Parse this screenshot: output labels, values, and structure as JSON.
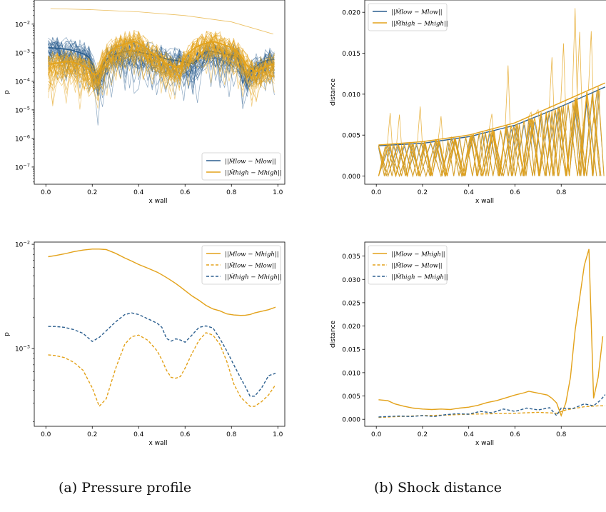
{
  "captions": {
    "a": "(a) Pressure profile",
    "b": "(b) Shock distance"
  },
  "colors": {
    "blue": "#2c5f8f",
    "orange": "#e3a21a"
  },
  "chart_data": [
    {
      "id": "pressure-ensemble",
      "type": "line",
      "title": "",
      "xlabel": "x wall",
      "ylabel": "p",
      "yscale": "log",
      "xlim": [
        -0.05,
        1.03
      ],
      "ylim": [
        2.5e-08,
        0.07
      ],
      "xticks": [
        "0.0",
        "0.2",
        "0.4",
        "0.6",
        "0.8",
        "1.0"
      ],
      "yticks": [
        "10^-7",
        "10^-6",
        "10^-5",
        "10^-4",
        "10^-3",
        "10^-2"
      ],
      "legend_position": "lower right",
      "legend": [
        "||M̂low − Mlow||",
        "||M̂high − Mhigh||"
      ],
      "grid": false,
      "note_series": "ensemble of many thin traces per series; representative traces listed",
      "series": [
        {
          "name": "||M̂low − Mlow||",
          "color": "blue",
          "samples": 30,
          "x": [
            0.02,
            0.1,
            0.18,
            0.22,
            0.28,
            0.36,
            0.44,
            0.52,
            0.58,
            0.64,
            0.7,
            0.76,
            0.82,
            0.86,
            0.9,
            0.94,
            0.98
          ],
          "y": [
            0.0015,
            0.0013,
            0.0008,
            5e-05,
            0.0008,
            0.0012,
            0.0009,
            0.0006,
            0.0005,
            0.0004,
            0.0012,
            0.0009,
            0.0008,
            0.0001,
            0.0003,
            0.0005,
            0.0006
          ]
        },
        {
          "name": "||M̂high − Mhigh||",
          "color": "orange",
          "samples": 40,
          "x": [
            0.02,
            0.1,
            0.18,
            0.22,
            0.3,
            0.38,
            0.46,
            0.52,
            0.58,
            0.66,
            0.72,
            0.8,
            0.86,
            0.9,
            0.94,
            0.98
          ],
          "y": [
            0.0004,
            0.0005,
            0.0003,
            0.0001,
            0.0015,
            0.0025,
            0.0009,
            0.0004,
            0.0003,
            0.0018,
            0.0025,
            0.0015,
            0.0004,
            0.0002,
            0.0003,
            0.0004
          ],
          "outlier": {
            "x": [
              0.02,
              0.2,
              0.4,
              0.6,
              0.8,
              0.98
            ],
            "y": [
              0.035,
              0.032,
              0.027,
              0.02,
              0.012,
              0.0045
            ]
          }
        }
      ]
    },
    {
      "id": "shock-ensemble",
      "type": "line",
      "title": "",
      "xlabel": "x wall",
      "ylabel": "distance",
      "xlim": [
        -0.05,
        1.0
      ],
      "ylim": [
        -0.001,
        0.0215
      ],
      "xticks": [
        "0.0",
        "0.2",
        "0.4",
        "0.6",
        "0.8",
        "1.0"
      ],
      "yticks": [
        "0.000",
        "0.005",
        "0.010",
        "0.015",
        "0.020"
      ],
      "legend_position": "upper left",
      "legend": [
        "||M̂low − Mlow||",
        "||M̂high − Mhigh||"
      ],
      "grid": false,
      "series": [
        {
          "name": "||M̂low − Mlow||",
          "color": "blue",
          "envelope": {
            "x": [
              0.01,
              0.2,
              0.4,
              0.6,
              0.8,
              1.0
            ],
            "y": [
              0.0037,
              0.004,
              0.0048,
              0.0062,
              0.0085,
              0.011
            ]
          }
        },
        {
          "name": "||M̂high − Mhigh||",
          "color": "orange",
          "envelope": {
            "x": [
              0.01,
              0.2,
              0.4,
              0.6,
              0.8,
              1.0
            ],
            "y": [
              0.0038,
              0.0042,
              0.005,
              0.0065,
              0.009,
              0.0115
            ]
          },
          "spikes": {
            "x": [
              0.06,
              0.1,
              0.19,
              0.28,
              0.5,
              0.57,
              0.67,
              0.7,
              0.76,
              0.81,
              0.86,
              0.88,
              0.93
            ],
            "y": [
              0.0077,
              0.0075,
              0.0085,
              0.0073,
              0.0076,
              0.0135,
              0.0078,
              0.0081,
              0.0145,
              0.0162,
              0.0205,
              0.0176,
              0.0177
            ]
          }
        }
      ]
    },
    {
      "id": "pressure-mean",
      "type": "line",
      "title": "",
      "xlabel": "x wall",
      "ylabel": "p",
      "yscale": "log",
      "xlim": [
        -0.05,
        1.03
      ],
      "ylim": [
        0.00018,
        0.0105
      ],
      "xticks": [
        "0.0",
        "0.2",
        "0.4",
        "0.6",
        "0.8",
        "1.0"
      ],
      "yticks": [
        "10^-3",
        "10^-2"
      ],
      "legend_position": "upper right",
      "legend": [
        "||Mlow − Mhigh||",
        "||M̂low − Mlow||",
        "||M̂high − Mhigh||"
      ],
      "grid": false,
      "x": [
        0.01,
        0.04,
        0.08,
        0.12,
        0.16,
        0.2,
        0.23,
        0.26,
        0.3,
        0.34,
        0.37,
        0.4,
        0.44,
        0.48,
        0.5,
        0.52,
        0.54,
        0.56,
        0.58,
        0.6,
        0.63,
        0.66,
        0.69,
        0.72,
        0.75,
        0.78,
        0.81,
        0.84,
        0.86,
        0.88,
        0.9,
        0.93,
        0.96,
        0.99
      ],
      "series": [
        {
          "name": "||Mlow − Mhigh||",
          "color": "orange",
          "dash": false,
          "y": [
            0.0076,
            0.0078,
            0.0081,
            0.0085,
            0.0088,
            0.009,
            0.009,
            0.0089,
            0.0082,
            0.0074,
            0.0069,
            0.0064,
            0.0059,
            0.0054,
            0.0051,
            0.0048,
            0.0045,
            0.0042,
            0.0039,
            0.0036,
            0.0032,
            0.0029,
            0.0026,
            0.0024,
            0.0023,
            0.00215,
            0.0021,
            0.00208,
            0.00209,
            0.00212,
            0.0022,
            0.00228,
            0.00236,
            0.0025
          ]
        },
        {
          "name": "||M̂low − Mlow||",
          "color": "orange",
          "dash": true,
          "y": [
            0.00087,
            0.00086,
            0.00082,
            0.00074,
            0.00062,
            0.00042,
            0.00028,
            0.00033,
            0.00064,
            0.0011,
            0.0013,
            0.00135,
            0.0012,
            0.00095,
            0.00078,
            0.00062,
            0.00053,
            0.00052,
            0.00054,
            0.00065,
            0.0009,
            0.0012,
            0.00142,
            0.00135,
            0.0011,
            0.00075,
            0.00046,
            0.00034,
            0.00031,
            0.00028,
            0.00028,
            0.00031,
            0.00036,
            0.00045
          ]
        },
        {
          "name": "||M̂high − Mhigh||",
          "color": "blue",
          "dash": true,
          "y": [
            0.00163,
            0.00163,
            0.0016,
            0.00152,
            0.0014,
            0.00117,
            0.00128,
            0.00148,
            0.0018,
            0.00212,
            0.0022,
            0.00212,
            0.00193,
            0.00175,
            0.0016,
            0.00125,
            0.00118,
            0.00124,
            0.00121,
            0.00115,
            0.00135,
            0.0016,
            0.00165,
            0.00158,
            0.00125,
            0.00095,
            0.0007,
            0.00052,
            0.00043,
            0.00035,
            0.00035,
            0.00042,
            0.00055,
            0.00058
          ]
        }
      ]
    },
    {
      "id": "shock-mean",
      "type": "line",
      "title": "",
      "xlabel": "x wall",
      "ylabel": "distance",
      "xlim": [
        -0.05,
        1.0
      ],
      "ylim": [
        -0.0015,
        0.038
      ],
      "xticks": [
        "0.0",
        "0.2",
        "0.4",
        "0.6",
        "0.8",
        "1.0"
      ],
      "yticks": [
        "0.000",
        "0.005",
        "0.010",
        "0.015",
        "0.020",
        "0.025",
        "0.030",
        "0.035"
      ],
      "legend_position": "upper left",
      "legend": [
        "||Mlow − Mhigh||",
        "||M̂low − Mlow||",
        "||M̂high − Mhigh||"
      ],
      "grid": false,
      "series": [
        {
          "name": "||Mlow − Mhigh||",
          "color": "orange",
          "dash": false,
          "x": [
            0.01,
            0.05,
            0.08,
            0.12,
            0.16,
            0.2,
            0.24,
            0.28,
            0.32,
            0.36,
            0.4,
            0.44,
            0.48,
            0.52,
            0.56,
            0.6,
            0.64,
            0.66,
            0.7,
            0.74,
            0.76,
            0.78,
            0.8,
            0.82,
            0.84,
            0.86,
            0.88,
            0.9,
            0.92,
            0.94,
            0.96,
            0.98
          ],
          "y": [
            0.0042,
            0.004,
            0.0033,
            0.0028,
            0.0024,
            0.0022,
            0.0021,
            0.0022,
            0.0021,
            0.0024,
            0.0026,
            0.003,
            0.0036,
            0.004,
            0.0046,
            0.0052,
            0.0057,
            0.006,
            0.0056,
            0.0052,
            0.0045,
            0.0035,
            0.0008,
            0.0035,
            0.009,
            0.019,
            0.026,
            0.033,
            0.0365,
            0.0045,
            0.009,
            0.0178
          ]
        },
        {
          "name": "||M̂low − Mlow||",
          "color": "orange",
          "dash": true,
          "x": [
            0.01,
            0.1,
            0.2,
            0.3,
            0.4,
            0.5,
            0.6,
            0.7,
            0.78,
            0.82,
            0.9,
            0.96,
            0.99
          ],
          "y": [
            0.0004,
            0.0006,
            0.0008,
            0.0009,
            0.0011,
            0.0012,
            0.0013,
            0.0015,
            0.0013,
            0.002,
            0.0027,
            0.0029,
            0.0029
          ]
        },
        {
          "name": "||M̂high − Mhigh||",
          "color": "blue",
          "dash": true,
          "x": [
            0.01,
            0.05,
            0.1,
            0.15,
            0.2,
            0.25,
            0.3,
            0.35,
            0.4,
            0.45,
            0.5,
            0.55,
            0.6,
            0.65,
            0.7,
            0.75,
            0.78,
            0.8,
            0.85,
            0.9,
            0.94,
            0.97,
            0.99
          ],
          "y": [
            0.0005,
            0.0006,
            0.0007,
            0.0006,
            0.0008,
            0.0006,
            0.001,
            0.0012,
            0.0011,
            0.0017,
            0.0014,
            0.0022,
            0.0017,
            0.0024,
            0.002,
            0.0025,
            0.0008,
            0.0024,
            0.0023,
            0.0033,
            0.0029,
            0.0041,
            0.0053
          ]
        }
      ]
    }
  ]
}
